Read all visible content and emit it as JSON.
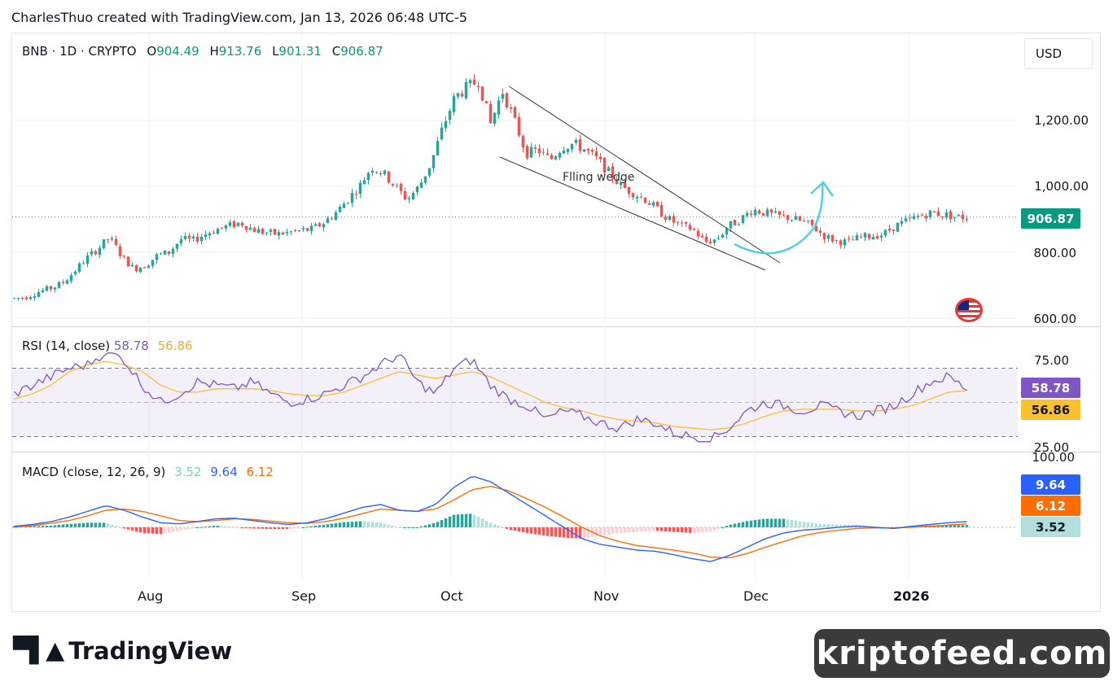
{
  "header": {
    "text": "CharlesThuo created with TradingView.com, Jan 13, 2026 06:48 UTC-5"
  },
  "currency_button": "USD",
  "brand": {
    "logo_text": "TradingView",
    "watermark": "kriptofeed.com"
  },
  "colors": {
    "up": "#26a69a",
    "down": "#ef5350",
    "rsi": "#7e57c2",
    "rsi_ma": "#fbc02d",
    "macd": "#2962ff",
    "signal": "#ff6d00",
    "arrow": "#4dd0e1"
  },
  "chart_data": [
    {
      "type": "candlestick",
      "symbol": "BNB · 1D · CRYPTO",
      "ohlc": {
        "o_label": "O",
        "o": "904.49",
        "h_label": "H",
        "h": "913.76",
        "l_label": "L",
        "l": "901.31",
        "c_label": "C",
        "c": "906.87"
      },
      "last_price": "906.87",
      "yticks": [
        "1,200.00",
        "1,000.00",
        "800.00",
        "600.00"
      ],
      "ylim": [
        600,
        1450
      ],
      "xticks": [
        "Aug",
        "Sep",
        "Oct",
        "Nov",
        "Dec",
        "2026"
      ],
      "annotation": "Flling wedge",
      "close_path": [
        660,
        665,
        680,
        690,
        705,
        740,
        780,
        810,
        845,
        790,
        750,
        760,
        790,
        800,
        840,
        835,
        855,
        870,
        880,
        890,
        870,
        860,
        855,
        860,
        865,
        870,
        890,
        920,
        960,
        1000,
        1060,
        1040,
        1000,
        960,
        1000,
        1070,
        1180,
        1270,
        1300,
        1320,
        1190,
        1290,
        1200,
        1100,
        1110,
        1080,
        1120,
        1130,
        1110,
        1080,
        1040,
        1000,
        980,
        960,
        930,
        900,
        880,
        870,
        830,
        840,
        880,
        900,
        930,
        920,
        910,
        905,
        895,
        880,
        850,
        835,
        830,
        845,
        850,
        855,
        880,
        895,
        910,
        920,
        915,
        908,
        906
      ]
    },
    {
      "type": "line",
      "title": "RSI (14, close)",
      "rsi_value": "58.78",
      "ma_value": "56.86",
      "yticks": [
        "75.00",
        "25.00"
      ],
      "ylim": [
        25,
        75
      ],
      "band": [
        30,
        70
      ],
      "rsi_path": [
        55,
        60,
        65,
        70,
        72,
        80,
        75,
        60,
        50,
        55,
        62,
        60,
        58,
        62,
        55,
        50,
        52,
        55,
        60,
        65,
        72,
        78,
        62,
        55,
        70,
        75,
        60,
        52,
        48,
        40,
        45,
        42,
        38,
        35,
        40,
        38,
        32,
        30,
        28,
        35,
        45,
        50,
        48,
        45,
        48,
        45,
        42,
        45,
        48,
        55,
        62,
        65,
        58
      ],
      "ma_path": [
        52,
        55,
        60,
        68,
        72,
        74,
        72,
        68,
        60,
        56,
        56,
        58,
        58,
        58,
        57,
        55,
        54,
        54,
        56,
        60,
        64,
        68,
        66,
        64,
        66,
        68,
        65,
        60,
        55,
        50,
        47,
        45,
        42,
        40,
        39,
        38,
        36,
        35,
        34,
        35,
        38,
        42,
        45,
        46,
        46,
        46,
        45,
        45,
        46,
        48,
        52,
        56,
        57
      ]
    },
    {
      "type": "line",
      "title": "MACD (close, 12, 26, 9)",
      "hist_value": "3.52",
      "macd_value": "9.64",
      "signal_value": "6.12",
      "ytick": "100.00",
      "macd_path": [
        2,
        5,
        10,
        18,
        28,
        38,
        30,
        18,
        8,
        6,
        10,
        15,
        16,
        12,
        8,
        5,
        8,
        15,
        25,
        35,
        40,
        30,
        28,
        40,
        70,
        90,
        80,
        60,
        40,
        20,
        0,
        -20,
        -30,
        -35,
        -40,
        -42,
        -48,
        -55,
        -60,
        -50,
        -35,
        -20,
        -10,
        -5,
        -3,
        0,
        2,
        0,
        -2,
        2,
        5,
        8,
        10
      ],
      "signal_path": [
        0,
        3,
        7,
        12,
        20,
        30,
        32,
        28,
        20,
        12,
        10,
        12,
        15,
        14,
        11,
        8,
        7,
        10,
        16,
        24,
        32,
        30,
        28,
        32,
        48,
        66,
        72,
        64,
        50,
        35,
        18,
        0,
        -15,
        -25,
        -32,
        -36,
        -40,
        -45,
        -52,
        -54,
        -46,
        -35,
        -25,
        -15,
        -9,
        -5,
        -2,
        -1,
        -1,
        0,
        2,
        4,
        6
      ],
      "hist_values": [
        2,
        2,
        3,
        6,
        8,
        8,
        -2,
        -10,
        -12,
        -6,
        0,
        3,
        1,
        -2,
        -3,
        -3,
        1,
        5,
        9,
        11,
        8,
        0,
        0,
        8,
        22,
        24,
        8,
        -4,
        -10,
        -15,
        -18,
        -20,
        -15,
        -10,
        -8,
        -6,
        -8,
        -10,
        -8,
        4,
        11,
        15,
        15,
        10,
        6,
        5,
        4,
        1,
        -1,
        2,
        3,
        4,
        4
      ]
    }
  ]
}
